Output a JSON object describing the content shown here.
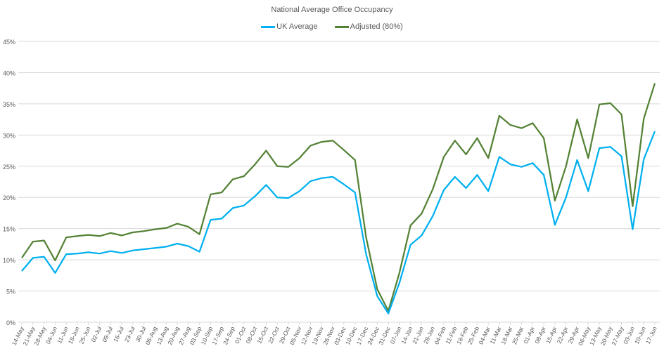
{
  "chart_data": {
    "type": "line",
    "title": "National Average Office Occupancy",
    "xlabel": "",
    "ylabel": "",
    "ylim": [
      0,
      45
    ],
    "yticks": [
      "0%",
      "5%",
      "10%",
      "15%",
      "20%",
      "25%",
      "30%",
      "35%",
      "40%",
      "45%"
    ],
    "grid": true,
    "legend_position": "top",
    "categories": [
      "14-May",
      "21-May",
      "28-May",
      "04-Jun",
      "11-Jun",
      "18-Jun",
      "25-Jun",
      "02-Jul",
      "09-Jul",
      "16-Jul",
      "23-Jul",
      "30-Jul",
      "06-Aug",
      "13-Aug",
      "20-Aug",
      "27-Aug",
      "03-Sep",
      "10-Sep",
      "17-Sep",
      "24-Sep",
      "01-Oct",
      "08-Oct",
      "15-Oct",
      "22-Oct",
      "29-Oct",
      "05-Nov",
      "12-Nov",
      "19-Nov",
      "26-Nov",
      "03-Dec",
      "10-Dec",
      "17-Dec",
      "24-Dec",
      "31-Dec",
      "07-Jan",
      "14-Jan",
      "21-Jan",
      "28-Jan",
      "04-Feb",
      "11-Feb",
      "18-Feb",
      "25-Feb",
      "04-Mar",
      "11-Mar",
      "18-Mar",
      "25-Mar",
      "01-Apr",
      "08-Apr",
      "15-Apr",
      "22-Apr",
      "29-Apr",
      "06-May",
      "13-May",
      "20-May",
      "27-May",
      "03-Jun",
      "10-Jun",
      "17-Jun"
    ],
    "series": [
      {
        "name": "UK Average",
        "color": "#00B0F0",
        "values": [
          8.2,
          10.3,
          10.5,
          7.9,
          10.9,
          11.0,
          11.2,
          11.0,
          11.4,
          11.1,
          11.5,
          11.7,
          11.9,
          12.1,
          12.6,
          12.2,
          11.3,
          16.4,
          16.6,
          18.3,
          18.7,
          20.2,
          22.0,
          20.0,
          19.9,
          21.0,
          22.6,
          23.1,
          23.3,
          22.1,
          20.8,
          10.9,
          4.2,
          1.4,
          6.3,
          12.4,
          13.9,
          17.0,
          21.2,
          23.3,
          21.5,
          23.6,
          21.0,
          26.5,
          25.3,
          24.9,
          25.5,
          23.6,
          15.6,
          20.0,
          26.0,
          21.0,
          27.9,
          28.1,
          26.6,
          14.9,
          26.1,
          30.6
        ]
      },
      {
        "name": "Adjusted (80%)",
        "color": "#548235",
        "values": [
          10.3,
          12.9,
          13.1,
          9.9,
          13.6,
          13.8,
          14.0,
          13.8,
          14.3,
          13.9,
          14.4,
          14.6,
          14.9,
          15.1,
          15.8,
          15.3,
          14.1,
          20.5,
          20.8,
          22.9,
          23.4,
          25.3,
          27.5,
          25.0,
          24.9,
          26.3,
          28.3,
          28.9,
          29.1,
          27.6,
          26.0,
          13.6,
          5.3,
          1.8,
          7.9,
          15.5,
          17.4,
          21.3,
          26.5,
          29.1,
          26.9,
          29.5,
          26.3,
          33.1,
          31.6,
          31.1,
          31.9,
          29.5,
          19.5,
          25.0,
          32.5,
          26.3,
          34.9,
          35.1,
          33.3,
          18.6,
          32.6,
          38.3
        ]
      }
    ]
  }
}
